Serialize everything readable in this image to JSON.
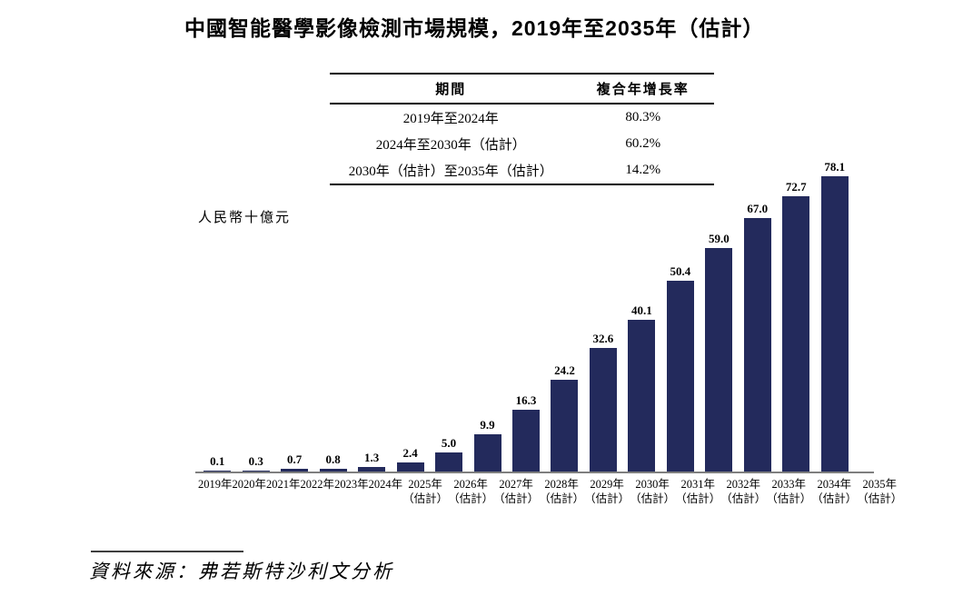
{
  "page": {
    "title": "中國智能醫學影像檢測市場規模，2019年至2035年（估計）",
    "unit_label": "人民幣十億元",
    "source_note": "資料來源：弗若斯特沙利文分析"
  },
  "cagr_table": {
    "col_headers": [
      "期間",
      "複合年增長率"
    ],
    "rows": [
      {
        "period": "2019年至2024年",
        "cagr": "80.3%"
      },
      {
        "period": "2024年至2030年（估計）",
        "cagr": "60.2%"
      },
      {
        "period": "2030年（估計）至2035年（估計）",
        "cagr": "14.2%"
      }
    ]
  },
  "chart_data": {
    "type": "bar",
    "title": "中國智能醫學影像檢測市場規模，2019年至2035年（估計）",
    "xlabel": "",
    "ylabel": "人民幣十億元",
    "categories": [
      "2019年",
      "2020年",
      "2021年",
      "2022年",
      "2023年",
      "2024年",
      "2025年",
      "2026年",
      "2027年",
      "2028年",
      "2029年",
      "2030年",
      "2031年",
      "2032年",
      "2033年",
      "2034年",
      "2035年"
    ],
    "category_notes": [
      "",
      "",
      "",
      "",
      "",
      "",
      "（估計）",
      "（估計）",
      "（估計）",
      "（估計）",
      "（估計）",
      "（估計）",
      "（估計）",
      "（估計）",
      "（估計）",
      "（估計）",
      "（估計）"
    ],
    "values": [
      0.1,
      0.3,
      0.7,
      0.8,
      1.3,
      2.4,
      5.0,
      9.9,
      16.3,
      24.2,
      32.6,
      40.1,
      50.4,
      59.0,
      67.0,
      72.7,
      78.1
    ],
    "value_labels": [
      "0.1",
      "0.3",
      "0.7",
      "0.8",
      "1.3",
      "2.4",
      "5.0",
      "9.9",
      "16.3",
      "24.2",
      "32.6",
      "40.1",
      "50.4",
      "59.0",
      "67.0",
      "72.7",
      "78.1"
    ],
    "ylim": [
      0,
      80
    ],
    "grid": false,
    "legend": "none",
    "bar_color": "#232a5c",
    "axis_color": "#7f7f7f"
  }
}
